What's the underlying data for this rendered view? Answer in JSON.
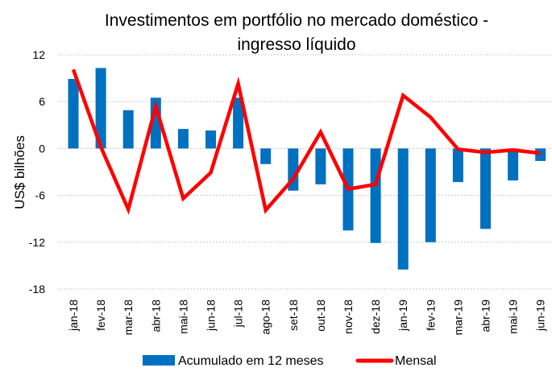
{
  "chart_data": {
    "type": "bar+line",
    "title": "Investimentos em portfólio no mercado doméstico - ingresso líquido",
    "title_lines": [
      "Investimentos em portfólio no mercado doméstico -",
      "ingresso líquido"
    ],
    "xlabel": "",
    "ylabel": "US$ bilhões",
    "ylim": [
      -18,
      12
    ],
    "yticks": [
      12,
      6,
      0,
      -6,
      -12,
      -18
    ],
    "ytick_labels": [
      "12",
      "6",
      "0",
      "-6",
      "-12",
      "-18"
    ],
    "grid": true,
    "legend_position": "bottom",
    "categories": [
      "jan-18",
      "fev-18",
      "mar-18",
      "abr-18",
      "mai-18",
      "jun-18",
      "jul-18",
      "ago-18",
      "set-18",
      "out-18",
      "nov-18",
      "dez-18",
      "jan-19",
      "fev-19",
      "mar-19",
      "abr-19",
      "mai-19",
      "jun-19"
    ],
    "series": [
      {
        "name": "Acumulado em 12 meses",
        "type": "bar",
        "color": "#0070C0",
        "values": [
          8.9,
          10.3,
          4.9,
          6.5,
          2.5,
          2.3,
          6.5,
          -2.0,
          -5.4,
          -4.6,
          -10.5,
          -12.1,
          -15.5,
          -12.0,
          -4.3,
          -10.3,
          -4.1,
          -1.6
        ]
      },
      {
        "name": "Mensal",
        "type": "line",
        "color": "#FF0000",
        "values": [
          10.1,
          0.2,
          -7.8,
          5.4,
          -6.4,
          -3.1,
          8.3,
          -7.9,
          -3.9,
          2.1,
          -5.2,
          -4.6,
          6.8,
          4.0,
          -0.1,
          -0.5,
          -0.2,
          -0.6
        ]
      }
    ]
  }
}
